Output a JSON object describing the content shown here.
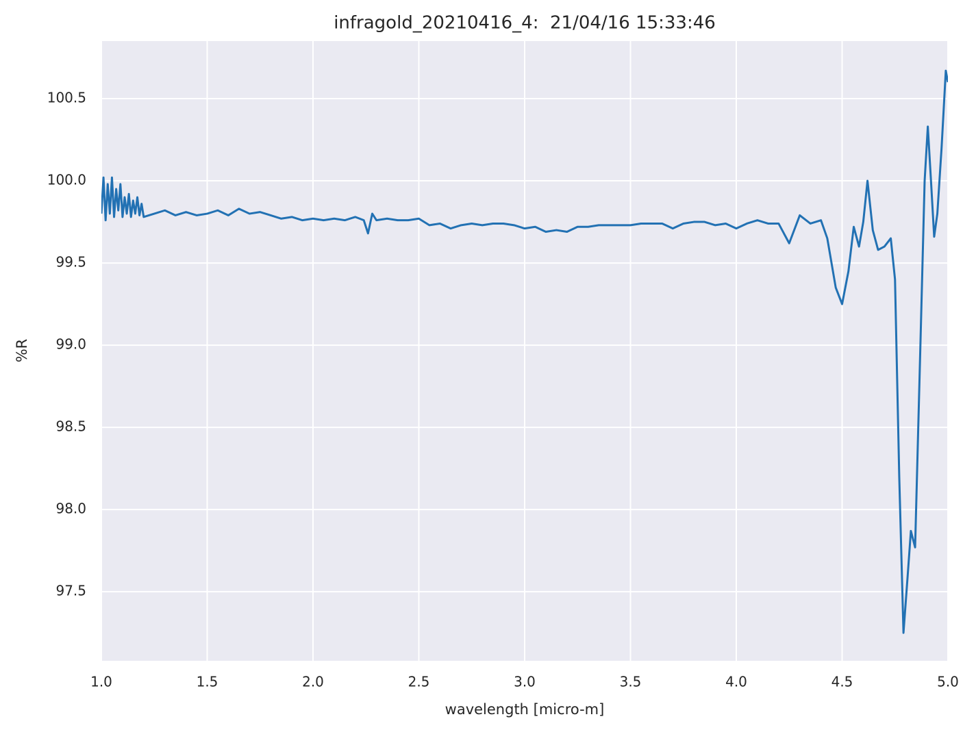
{
  "chart_data": {
    "type": "line",
    "title": "infragold_20210416_4:  21/04/16 15:33:46",
    "x_label": "wavelength [micro-m]",
    "y_label": "%R",
    "grid": true,
    "background": "#eaeaf2",
    "xlim": [
      1.0,
      5.0
    ],
    "ylim": [
      97.08,
      100.85
    ],
    "xticks": [
      {
        "value": 1.0,
        "label": "1.0"
      },
      1.5,
      {
        "value": 2.0,
        "label": "2.0"
      },
      2.5,
      {
        "value": 3.0,
        "label": "3.0"
      },
      3.5,
      {
        "value": 4.0,
        "label": "4.0"
      },
      4.5,
      {
        "value": 5.0,
        "label": "5.0"
      }
    ],
    "yticks": [
      97.5,
      {
        "value": 98.0,
        "label": "98.0"
      },
      98.5,
      {
        "value": 99.0,
        "label": "99.0"
      },
      99.5,
      {
        "value": 100.0,
        "label": "100.0"
      },
      100.5
    ],
    "x": [
      1.0,
      1.01,
      1.02,
      1.03,
      1.04,
      1.05,
      1.06,
      1.07,
      1.08,
      1.09,
      1.1,
      1.11,
      1.12,
      1.13,
      1.14,
      1.15,
      1.16,
      1.17,
      1.18,
      1.19,
      1.2,
      1.25,
      1.3,
      1.35,
      1.4,
      1.45,
      1.5,
      1.55,
      1.6,
      1.65,
      1.7,
      1.75,
      1.8,
      1.85,
      1.9,
      1.95,
      2.0,
      2.05,
      2.1,
      2.15,
      2.2,
      2.24,
      2.26,
      2.28,
      2.3,
      2.35,
      2.4,
      2.45,
      2.5,
      2.55,
      2.6,
      2.65,
      2.7,
      2.75,
      2.8,
      2.85,
      2.9,
      2.95,
      3.0,
      3.05,
      3.1,
      3.15,
      3.2,
      3.25,
      3.3,
      3.35,
      3.4,
      3.45,
      3.5,
      3.55,
      3.6,
      3.65,
      3.7,
      3.75,
      3.8,
      3.85,
      3.9,
      3.95,
      4.0,
      4.05,
      4.1,
      4.15,
      4.2,
      4.25,
      4.3,
      4.35,
      4.4,
      4.43,
      4.47,
      4.5,
      4.53,
      4.555,
      4.58,
      4.6,
      4.62,
      4.645,
      4.67,
      4.7,
      4.73,
      4.75,
      4.77,
      4.79,
      4.81,
      4.825,
      4.845,
      4.87,
      4.89,
      4.905,
      4.92,
      4.935,
      4.95,
      4.97,
      4.99,
      5.0
    ],
    "series": [
      {
        "color": "#2271b3",
        "values": [
          99.8,
          100.02,
          99.76,
          99.98,
          99.8,
          100.02,
          99.78,
          99.95,
          99.82,
          99.98,
          99.78,
          99.9,
          99.8,
          99.92,
          99.78,
          99.88,
          99.8,
          99.9,
          99.79,
          99.86,
          99.78,
          99.8,
          99.82,
          99.79,
          99.81,
          99.79,
          99.8,
          99.82,
          99.79,
          99.83,
          99.8,
          99.81,
          99.79,
          99.77,
          99.78,
          99.76,
          99.77,
          99.76,
          99.77,
          99.76,
          99.78,
          99.76,
          99.68,
          99.8,
          99.76,
          99.77,
          99.76,
          99.76,
          99.77,
          99.73,
          99.74,
          99.71,
          99.73,
          99.74,
          99.73,
          99.74,
          99.74,
          99.73,
          99.71,
          99.72,
          99.69,
          99.7,
          99.69,
          99.72,
          99.72,
          99.73,
          99.73,
          99.73,
          99.73,
          99.74,
          99.74,
          99.74,
          99.71,
          99.74,
          99.75,
          99.75,
          99.73,
          99.74,
          99.71,
          99.74,
          99.76,
          99.74,
          99.74,
          99.62,
          99.79,
          99.74,
          99.76,
          99.65,
          99.35,
          99.25,
          99.45,
          99.72,
          99.6,
          99.75,
          100.0,
          99.7,
          99.58,
          99.6,
          99.65,
          99.4,
          98.2,
          97.25,
          97.6,
          97.87,
          97.77,
          99.0,
          100.0,
          100.33,
          100.0,
          99.66,
          99.8,
          100.2,
          100.67,
          100.6
        ]
      }
    ]
  }
}
